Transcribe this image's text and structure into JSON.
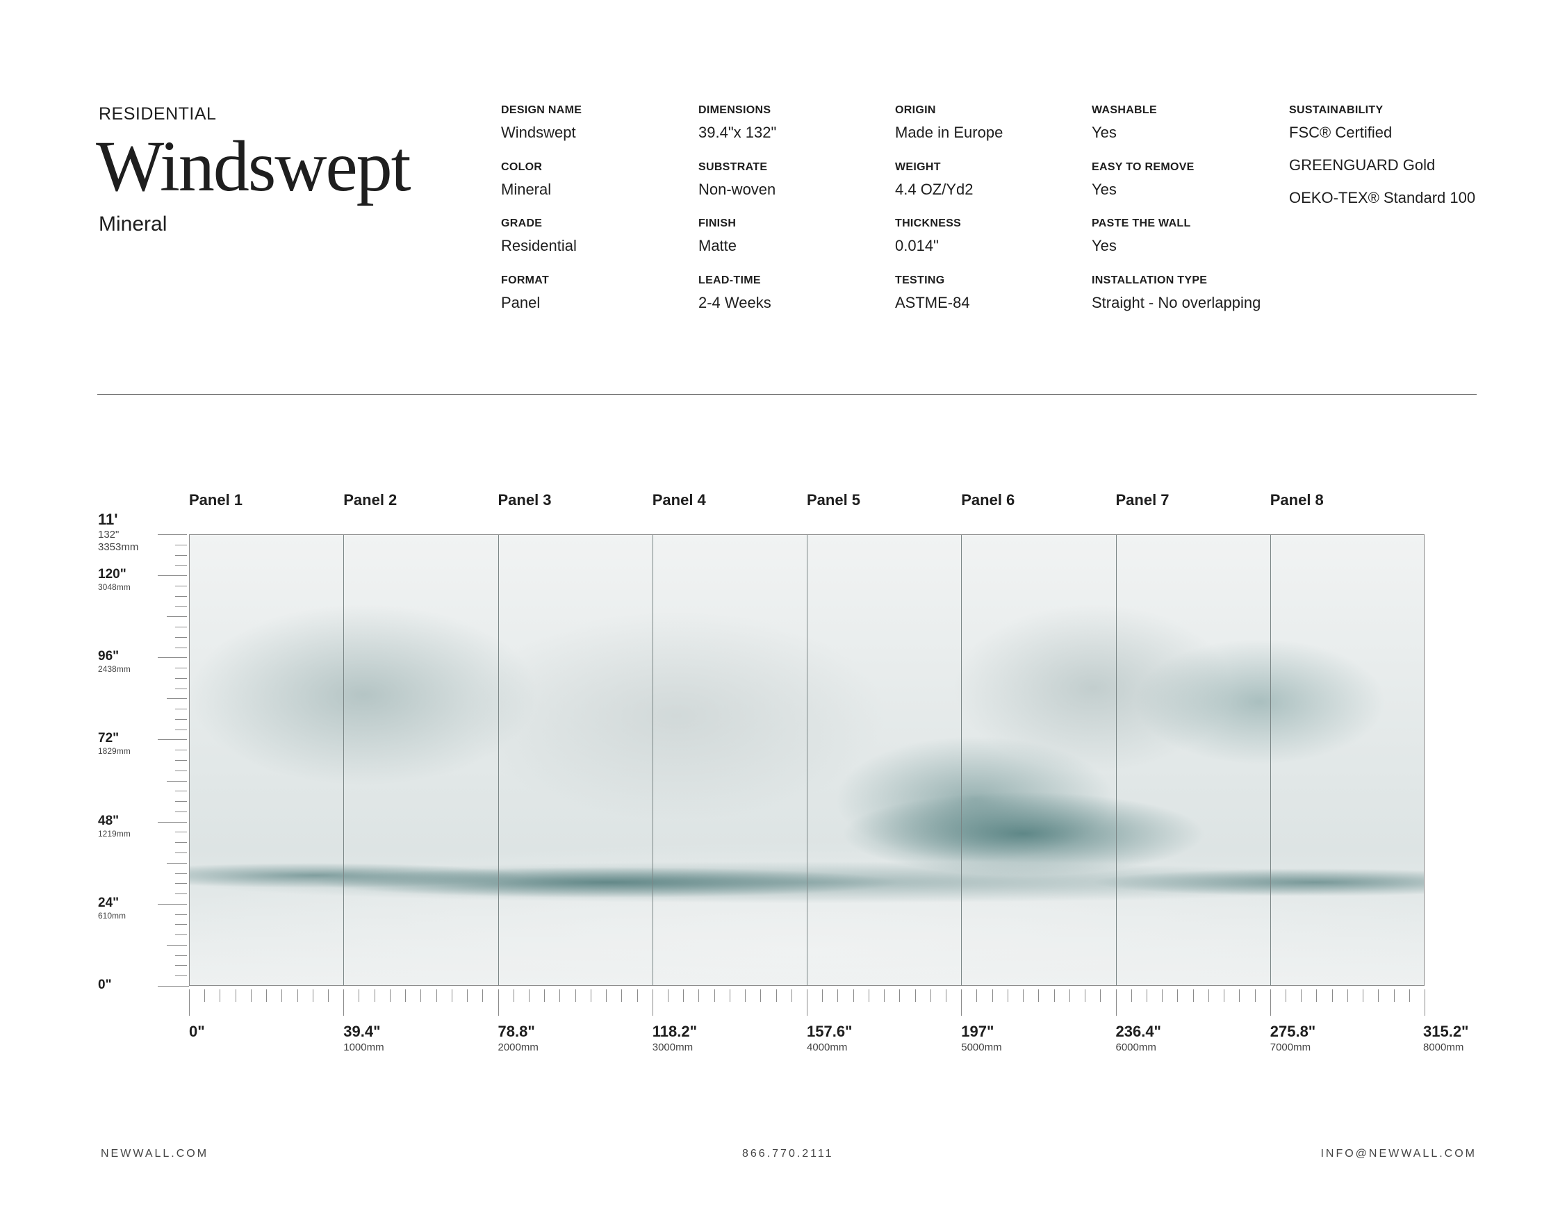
{
  "header": {
    "category": "RESIDENTIAL",
    "title": "Windswept",
    "colorway": "Mineral"
  },
  "specs": [
    [
      {
        "label": "DESIGN NAME",
        "value": "Windswept"
      },
      {
        "label": "COLOR",
        "value": "Mineral"
      },
      {
        "label": "GRADE",
        "value": "Residential"
      },
      {
        "label": "FORMAT",
        "value": "Panel"
      }
    ],
    [
      {
        "label": "DIMENSIONS",
        "value": "39.4\"x 132\""
      },
      {
        "label": "SUBSTRATE",
        "value": "Non-woven"
      },
      {
        "label": "FINISH",
        "value": "Matte"
      },
      {
        "label": "LEAD-TIME",
        "value": "2-4 Weeks"
      }
    ],
    [
      {
        "label": "ORIGIN",
        "value": "Made in Europe"
      },
      {
        "label": "WEIGHT",
        "value": "4.4 OZ/Yd2"
      },
      {
        "label": "THICKNESS",
        "value": "0.014\""
      },
      {
        "label": "TESTING",
        "value": "ASTME-84"
      }
    ],
    [
      {
        "label": "WASHABLE",
        "value": "Yes"
      },
      {
        "label": "EASY TO REMOVE",
        "value": "Yes"
      },
      {
        "label": "PASTE THE WALL",
        "value": "Yes"
      },
      {
        "label": "INSTALLATION TYPE",
        "value": "Straight - No overlapping"
      }
    ]
  ],
  "sustainability": {
    "label": "SUSTAINABILITY",
    "values": [
      "FSC® Certified",
      "GREENGUARD Gold",
      "OEKO-TEX® Standard 100"
    ]
  },
  "panels": [
    "Panel 1",
    "Panel 2",
    "Panel 3",
    "Panel 4",
    "Panel 5",
    "Panel 6",
    "Panel 7",
    "Panel 8"
  ],
  "mural_colors": {
    "base": "#eef1f1",
    "accent": "#4f7c7c"
  },
  "height_axis": {
    "top": {
      "feet": "11'",
      "inches": "132\"",
      "mm": "3353mm"
    },
    "marks": [
      {
        "inches": "120\"",
        "mm": "3048mm",
        "value": 120
      },
      {
        "inches": "96\"",
        "mm": "2438mm",
        "value": 96
      },
      {
        "inches": "72\"",
        "mm": "1829mm",
        "value": 72
      },
      {
        "inches": "48\"",
        "mm": "1219mm",
        "value": 48
      },
      {
        "inches": "24\"",
        "mm": "610mm",
        "value": 24
      },
      {
        "inches": "0\"",
        "mm": "",
        "value": 0
      }
    ]
  },
  "width_axis": [
    {
      "inches": "0\"",
      "mm": ""
    },
    {
      "inches": "39.4\"",
      "mm": "1000mm"
    },
    {
      "inches": "78.8\"",
      "mm": "2000mm"
    },
    {
      "inches": "118.2\"",
      "mm": "3000mm"
    },
    {
      "inches": "157.6\"",
      "mm": "4000mm"
    },
    {
      "inches": "197\"",
      "mm": "5000mm"
    },
    {
      "inches": "236.4\"",
      "mm": "6000mm"
    },
    {
      "inches": "275.8\"",
      "mm": "7000mm"
    },
    {
      "inches": "315.2\"",
      "mm": "8000mm"
    }
  ],
  "footer": {
    "website": "NEWWALL.COM",
    "phone": "866.770.2111",
    "email": "INFO@NEWWALL.COM"
  }
}
